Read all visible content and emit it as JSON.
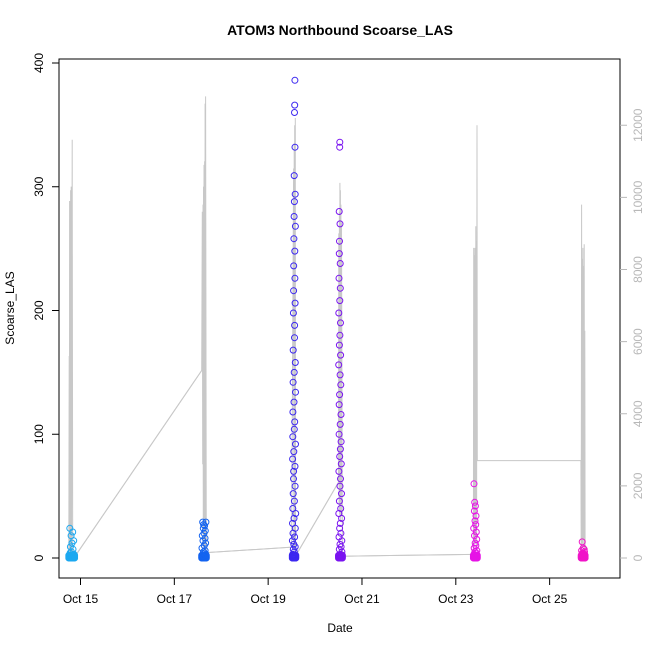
{
  "chart_data": {
    "type": "scatter",
    "title": "ATOM3 Northbound Scoarse_LAS",
    "xlabel": "Date",
    "ylabel": "Scoarse_LAS",
    "xlim": [
      "2000-10-14T13:00",
      "2000-10-26T12:00"
    ],
    "ylim": [
      0,
      400
    ],
    "y2lim": [
      0,
      13000
    ],
    "x_ticks": [
      {
        "label": "Oct 15",
        "at": "2000-10-15T00:00"
      },
      {
        "label": "Oct 17",
        "at": "2000-10-17T00:00"
      },
      {
        "label": "Oct 19",
        "at": "2000-10-19T00:00"
      },
      {
        "label": "Oct 21",
        "at": "2000-10-21T00:00"
      },
      {
        "label": "Oct 23",
        "at": "2000-10-23T00:00"
      },
      {
        "label": "Oct 25",
        "at": "2000-10-25T00:00"
      }
    ],
    "y_ticks": [
      0,
      100,
      200,
      300,
      400
    ],
    "y2_ticks": [
      0,
      2000,
      4000,
      6000,
      8000,
      10000,
      12000
    ],
    "secondary_line_color": "#c8c8c8",
    "secondary_line": [
      [
        "2000-10-14T18:00",
        0
      ],
      [
        "2000-10-14T18:12",
        5600
      ],
      [
        "2000-10-14T18:18",
        10
      ],
      [
        "2000-10-14T18:25",
        9900
      ],
      [
        "2000-10-14T18:32",
        20
      ],
      [
        "2000-10-14T18:40",
        9700
      ],
      [
        "2000-10-14T18:46",
        10
      ],
      [
        "2000-10-14T18:55",
        10200
      ],
      [
        "2000-10-14T19:05",
        10
      ],
      [
        "2000-10-14T19:15",
        10300
      ],
      [
        "2000-10-14T19:25",
        20
      ],
      [
        "2000-10-14T19:45",
        11600
      ],
      [
        "2000-10-14T20:00",
        10
      ],
      [
        "2000-10-14T21:00",
        30
      ],
      [
        "2000-10-17T14:00",
        5200
      ],
      [
        "2000-10-17T14:20",
        9600
      ],
      [
        "2000-10-17T14:30",
        2600
      ],
      [
        "2000-10-17T14:40",
        9800
      ],
      [
        "2000-10-17T14:48",
        300
      ],
      [
        "2000-10-17T14:56",
        10300
      ],
      [
        "2000-10-17T15:04",
        500
      ],
      [
        "2000-10-17T15:12",
        10900
      ],
      [
        "2000-10-17T15:20",
        200
      ],
      [
        "2000-10-17T15:28",
        11000
      ],
      [
        "2000-10-17T15:36",
        400
      ],
      [
        "2000-10-17T15:44",
        12600
      ],
      [
        "2000-10-17T15:52",
        300
      ],
      [
        "2000-10-17T16:00",
        12800
      ],
      [
        "2000-10-17T16:20",
        150
      ],
      [
        "2000-10-19T12:00",
        300
      ],
      [
        "2000-10-19T13:00",
        10800
      ],
      [
        "2000-10-19T13:10",
        200
      ],
      [
        "2000-10-19T13:20",
        11500
      ],
      [
        "2000-10-19T13:28",
        300
      ],
      [
        "2000-10-19T13:36",
        12000
      ],
      [
        "2000-10-19T13:44",
        250
      ],
      [
        "2000-10-19T13:52",
        12200
      ],
      [
        "2000-10-19T14:00",
        300
      ],
      [
        "2000-10-19T14:30",
        100
      ],
      [
        "2000-10-20T12:00",
        2100
      ],
      [
        "2000-10-20T12:10",
        9000
      ],
      [
        "2000-10-20T12:18",
        1500
      ],
      [
        "2000-10-20T12:26",
        9600
      ],
      [
        "2000-10-20T12:34",
        1200
      ],
      [
        "2000-10-20T12:42",
        10400
      ],
      [
        "2000-10-20T12:50",
        1700
      ],
      [
        "2000-10-20T12:58",
        10200
      ],
      [
        "2000-10-20T13:06",
        1000
      ],
      [
        "2000-10-20T13:14",
        9800
      ],
      [
        "2000-10-20T13:22",
        1200
      ],
      [
        "2000-10-20T13:30",
        9300
      ],
      [
        "2000-10-20T14:00",
        50
      ],
      [
        "2000-10-23T09:00",
        100
      ],
      [
        "2000-10-23T09:10",
        8600
      ],
      [
        "2000-10-23T09:16",
        300
      ],
      [
        "2000-10-23T09:22",
        8400
      ],
      [
        "2000-10-23T09:28",
        500
      ],
      [
        "2000-10-23T09:34",
        8200
      ],
      [
        "2000-10-23T09:40",
        800
      ],
      [
        "2000-10-23T09:46",
        8600
      ],
      [
        "2000-10-23T09:52",
        600
      ],
      [
        "2000-10-23T09:58",
        8000
      ],
      [
        "2000-10-23T10:06",
        400
      ],
      [
        "2000-10-23T10:14",
        9200
      ],
      [
        "2000-10-23T10:22",
        500
      ],
      [
        "2000-10-23T10:30",
        8800
      ],
      [
        "2000-10-23T10:38",
        300
      ],
      [
        "2000-10-23T10:50",
        12000
      ],
      [
        "2000-10-23T11:00",
        2700
      ],
      [
        "2000-10-25T16:00",
        2700
      ],
      [
        "2000-10-25T16:10",
        100
      ],
      [
        "2000-10-25T16:20",
        9800
      ],
      [
        "2000-10-25T16:30",
        300
      ],
      [
        "2000-10-25T16:40",
        8300
      ],
      [
        "2000-10-25T16:50",
        400
      ],
      [
        "2000-10-25T17:00",
        8600
      ],
      [
        "2000-10-25T17:10",
        300
      ],
      [
        "2000-10-25T17:20",
        8100
      ],
      [
        "2000-10-25T17:30",
        500
      ],
      [
        "2000-10-25T17:40",
        8700
      ],
      [
        "2000-10-25T17:50",
        200
      ],
      [
        "2000-10-25T18:00",
        6300
      ],
      [
        "2000-10-25T18:10",
        100
      ]
    ],
    "connector_line": [
      [
        "2000-10-14T21:00",
        30
      ],
      [
        "2000-10-17T14:00",
        5200
      ],
      [
        "2000-10-17T16:20",
        150
      ],
      [
        "2000-10-19T12:00",
        300
      ],
      [
        "2000-10-19T14:30",
        100
      ],
      [
        "2000-10-20T12:00",
        2100
      ],
      [
        "2000-10-20T14:00",
        50
      ],
      [
        "2000-10-23T09:00",
        100
      ]
    ],
    "series": [
      {
        "color": "#1ca8f0",
        "start": "2000-10-14T18:00",
        "end": "2000-10-14T21:00",
        "points": [
          [
            "2000-10-14T18:30",
            24
          ],
          [
            "2000-10-14T20:00",
            21
          ],
          [
            "2000-10-14T19:10",
            18
          ],
          [
            "2000-10-14T20:30",
            14
          ],
          [
            "2000-10-14T19:40",
            12
          ],
          [
            "2000-10-14T18:50",
            9
          ],
          [
            "2000-10-14T20:10",
            7
          ],
          [
            "2000-10-14T19:20",
            5
          ],
          [
            "2000-10-14T18:40",
            4
          ],
          [
            "2000-10-14T20:40",
            3
          ],
          [
            "2000-10-14T19:00",
            2
          ],
          [
            "2000-10-14T19:50",
            1.5
          ],
          [
            "2000-10-14T20:20",
            1
          ],
          [
            "2000-10-14T18:20",
            0.5
          ]
        ]
      },
      {
        "color": "#1464f0",
        "start": "2000-10-17T14:00",
        "end": "2000-10-17T16:20",
        "points": [
          [
            "2000-10-17T14:30",
            29
          ],
          [
            "2000-10-17T16:10",
            29
          ],
          [
            "2000-10-17T15:00",
            27
          ],
          [
            "2000-10-17T15:30",
            26
          ],
          [
            "2000-10-17T14:50",
            24
          ],
          [
            "2000-10-17T15:50",
            22
          ],
          [
            "2000-10-17T15:10",
            20
          ],
          [
            "2000-10-17T14:20",
            18
          ],
          [
            "2000-10-17T15:40",
            16
          ],
          [
            "2000-10-17T14:40",
            14
          ],
          [
            "2000-10-17T16:00",
            12
          ],
          [
            "2000-10-17T15:20",
            10
          ],
          [
            "2000-10-17T14:10",
            8
          ],
          [
            "2000-10-17T15:45",
            6
          ],
          [
            "2000-10-17T14:55",
            5
          ],
          [
            "2000-10-17T15:25",
            4
          ],
          [
            "2000-10-17T16:05",
            3
          ],
          [
            "2000-10-17T14:35",
            2
          ],
          [
            "2000-10-17T15:05",
            1
          ],
          [
            "2000-10-17T15:35",
            0.5
          ]
        ]
      },
      {
        "color": "#3c28f0",
        "start": "2000-10-19T12:20",
        "end": "2000-10-19T14:10",
        "points": [
          [
            "2000-10-19T13:40",
            386
          ],
          [
            "2000-10-19T13:35",
            366
          ],
          [
            "2000-10-19T13:30",
            360
          ],
          [
            "2000-10-19T13:45",
            332
          ],
          [
            "2000-10-19T13:20",
            309
          ],
          [
            "2000-10-19T13:50",
            294
          ],
          [
            "2000-10-19T13:25",
            288
          ],
          [
            "2000-10-19T13:15",
            276
          ],
          [
            "2000-10-19T13:55",
            268
          ],
          [
            "2000-10-19T13:10",
            258
          ],
          [
            "2000-10-19T13:38",
            248
          ],
          [
            "2000-10-19T13:05",
            236
          ],
          [
            "2000-10-19T13:42",
            226
          ],
          [
            "2000-10-19T13:00",
            216
          ],
          [
            "2000-10-19T13:48",
            206
          ],
          [
            "2000-10-19T12:55",
            198
          ],
          [
            "2000-10-19T13:33",
            188
          ],
          [
            "2000-10-19T13:28",
            178
          ],
          [
            "2000-10-19T12:50",
            168
          ],
          [
            "2000-10-19T13:52",
            158
          ],
          [
            "2000-10-19T13:18",
            150
          ],
          [
            "2000-10-19T12:45",
            142
          ],
          [
            "2000-10-19T13:58",
            134
          ],
          [
            "2000-10-19T13:12",
            126
          ],
          [
            "2000-10-19T12:40",
            118
          ],
          [
            "2000-10-19T13:36",
            110
          ],
          [
            "2000-10-19T13:22",
            104
          ],
          [
            "2000-10-19T12:35",
            98
          ],
          [
            "2000-10-19T14:00",
            92
          ],
          [
            "2000-10-19T13:08",
            86
          ],
          [
            "2000-10-19T12:30",
            80
          ],
          [
            "2000-10-19T13:44",
            74
          ],
          [
            "2000-10-19T13:02",
            70
          ],
          [
            "2000-10-19T12:58",
            64
          ],
          [
            "2000-10-19T13:46",
            58
          ],
          [
            "2000-10-19T12:48",
            52
          ],
          [
            "2000-10-19T13:26",
            46
          ],
          [
            "2000-10-19T12:38",
            40
          ],
          [
            "2000-10-19T14:05",
            36
          ],
          [
            "2000-10-19T13:14",
            32
          ],
          [
            "2000-10-19T12:28",
            28
          ],
          [
            "2000-10-19T13:54",
            24
          ],
          [
            "2000-10-19T12:42",
            20
          ],
          [
            "2000-10-19T13:32",
            17
          ],
          [
            "2000-10-19T12:25",
            14
          ],
          [
            "2000-10-19T13:06",
            11
          ],
          [
            "2000-10-19T13:50",
            9
          ],
          [
            "2000-10-19T12:52",
            7
          ],
          [
            "2000-10-19T13:24",
            5
          ],
          [
            "2000-10-19T12:32",
            3
          ],
          [
            "2000-10-19T13:56",
            2
          ],
          [
            "2000-10-19T13:16",
            1
          ]
        ]
      },
      {
        "color": "#7a14f0",
        "start": "2000-10-20T12:00",
        "end": "2000-10-20T14:00",
        "points": [
          [
            "2000-10-20T12:40",
            336
          ],
          [
            "2000-10-20T12:35",
            332
          ],
          [
            "2000-10-20T12:20",
            280
          ],
          [
            "2000-10-20T12:45",
            270
          ],
          [
            "2000-10-20T12:30",
            256
          ],
          [
            "2000-10-20T12:25",
            246
          ],
          [
            "2000-10-20T12:50",
            238
          ],
          [
            "2000-10-20T12:15",
            226
          ],
          [
            "2000-10-20T12:55",
            218
          ],
          [
            "2000-10-20T12:38",
            208
          ],
          [
            "2000-10-20T12:10",
            198
          ],
          [
            "2000-10-20T13:00",
            190
          ],
          [
            "2000-10-20T12:42",
            180
          ],
          [
            "2000-10-20T12:28",
            172
          ],
          [
            "2000-10-20T13:05",
            164
          ],
          [
            "2000-10-20T12:05",
            156
          ],
          [
            "2000-10-20T12:48",
            148
          ],
          [
            "2000-10-20T13:10",
            140
          ],
          [
            "2000-10-20T12:32",
            132
          ],
          [
            "2000-10-20T12:22",
            124
          ],
          [
            "2000-10-20T13:15",
            116
          ],
          [
            "2000-10-20T12:52",
            108
          ],
          [
            "2000-10-20T12:18",
            100
          ],
          [
            "2000-10-20T13:20",
            94
          ],
          [
            "2000-10-20T12:58",
            88
          ],
          [
            "2000-10-20T12:36",
            82
          ],
          [
            "2000-10-20T13:25",
            76
          ],
          [
            "2000-10-20T12:12",
            70
          ],
          [
            "2000-10-20T13:02",
            64
          ],
          [
            "2000-10-20T12:44",
            58
          ],
          [
            "2000-10-20T13:30",
            52
          ],
          [
            "2000-10-20T12:26",
            46
          ],
          [
            "2000-10-20T13:08",
            40
          ],
          [
            "2000-10-20T12:08",
            36
          ],
          [
            "2000-10-20T13:35",
            32
          ],
          [
            "2000-10-20T12:54",
            28
          ],
          [
            "2000-10-20T12:34",
            24
          ],
          [
            "2000-10-20T13:12",
            20
          ],
          [
            "2000-10-20T12:16",
            17
          ],
          [
            "2000-10-20T13:40",
            14
          ],
          [
            "2000-10-20T12:46",
            11
          ],
          [
            "2000-10-20T13:18",
            9
          ],
          [
            "2000-10-20T12:24",
            7
          ],
          [
            "2000-10-20T13:45",
            5
          ],
          [
            "2000-10-20T12:56",
            3
          ],
          [
            "2000-10-20T13:50",
            2
          ],
          [
            "2000-10-20T12:14",
            1
          ]
        ]
      },
      {
        "color": "#e614e6",
        "start": "2000-10-23T09:00",
        "end": "2000-10-23T11:00",
        "points": [
          [
            "2000-10-23T09:20",
            60
          ],
          [
            "2000-10-23T09:40",
            45
          ],
          [
            "2000-10-23T10:00",
            42
          ],
          [
            "2000-10-23T09:30",
            38
          ],
          [
            "2000-10-23T10:20",
            34
          ],
          [
            "2000-10-23T09:50",
            30
          ],
          [
            "2000-10-23T10:10",
            27
          ],
          [
            "2000-10-23T09:10",
            24
          ],
          [
            "2000-10-23T10:30",
            21
          ],
          [
            "2000-10-23T09:35",
            18
          ],
          [
            "2000-10-23T10:40",
            15
          ],
          [
            "2000-10-23T09:55",
            12
          ],
          [
            "2000-10-23T10:15",
            10
          ],
          [
            "2000-10-23T09:25",
            8
          ],
          [
            "2000-10-23T10:45",
            6
          ],
          [
            "2000-10-23T09:45",
            5
          ],
          [
            "2000-10-23T10:25",
            4
          ],
          [
            "2000-10-23T09:15",
            3
          ],
          [
            "2000-10-23T10:35",
            2
          ],
          [
            "2000-10-23T10:05",
            1
          ]
        ]
      },
      {
        "color": "#f014c8",
        "start": "2000-10-25T16:10",
        "end": "2000-10-25T18:10",
        "points": [
          [
            "2000-10-25T16:40",
            13
          ],
          [
            "2000-10-25T17:10",
            8
          ],
          [
            "2000-10-25T17:40",
            7
          ],
          [
            "2000-10-25T16:20",
            6
          ],
          [
            "2000-10-25T17:50",
            5
          ],
          [
            "2000-10-25T16:50",
            4
          ],
          [
            "2000-10-25T17:20",
            3.5
          ],
          [
            "2000-10-25T16:30",
            3
          ],
          [
            "2000-10-25T18:00",
            2.5
          ],
          [
            "2000-10-25T17:00",
            2
          ],
          [
            "2000-10-25T17:30",
            1.5
          ],
          [
            "2000-10-25T16:15",
            1
          ],
          [
            "2000-10-25T17:55",
            0.5
          ]
        ]
      }
    ]
  }
}
